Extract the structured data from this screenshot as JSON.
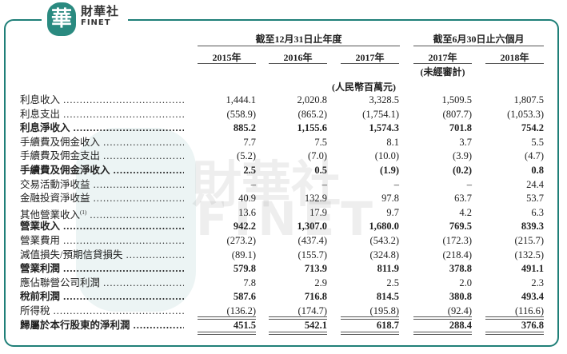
{
  "brand": {
    "logo_char": "華",
    "name_cn": "財華社",
    "name_en": "FINET"
  },
  "watermark": {
    "cn": "財華社",
    "en": "FINET"
  },
  "header": {
    "group_annual": "截至12月31日止年度",
    "group_interim": "截至6月30日止六個月",
    "years": [
      "2015年",
      "2016年",
      "2017年",
      "2017年",
      "2018年"
    ],
    "unaudited": "(未經審計)",
    "unit": "(人民幣百萬元)"
  },
  "rows": [
    {
      "label": "利息收入",
      "bold": false,
      "values": [
        "1,444.1",
        "2,020.8",
        "3,328.5",
        "1,509.5",
        "1,807.5"
      ]
    },
    {
      "label": "利息支出",
      "bold": false,
      "values": [
        "(558.9)",
        "(865.2)",
        "(1,754.1)",
        "(807.7)",
        "(1,053.3)"
      ]
    },
    {
      "label": "利息淨收入",
      "bold": true,
      "values": [
        "885.2",
        "1,155.6",
        "1,574.3",
        "701.8",
        "754.2"
      ]
    },
    {
      "label": "手續費及佣金收入",
      "bold": false,
      "values": [
        "7.7",
        "7.5",
        "8.1",
        "3.7",
        "5.5"
      ]
    },
    {
      "label": "手續費及佣金支出",
      "bold": false,
      "values": [
        "(5.2)",
        "(7.0)",
        "(10.0)",
        "(3.9)",
        "(4.7)"
      ]
    },
    {
      "label": "手續費及佣金淨收入",
      "bold": true,
      "values": [
        "2.5",
        "0.5",
        "(1.9)",
        "(0.2)",
        "0.8"
      ]
    },
    {
      "label": "交易活動淨收益",
      "bold": false,
      "values": [
        "–",
        "–",
        "–",
        "–",
        "24.4"
      ]
    },
    {
      "label": "金融投資淨收益",
      "bold": false,
      "values": [
        "40.9",
        "132.9",
        "97.8",
        "63.7",
        "53.7"
      ]
    },
    {
      "label": "其他營業收入",
      "note": "(1)",
      "bold": false,
      "values": [
        "13.6",
        "17.9",
        "9.7",
        "4.2",
        "6.3"
      ]
    },
    {
      "label": "營業收入",
      "bold": true,
      "values": [
        "942.2",
        "1,307.0",
        "1,680.0",
        "769.5",
        "839.3"
      ]
    },
    {
      "label": "營業費用",
      "bold": false,
      "values": [
        "(273.2)",
        "(437.4)",
        "(543.2)",
        "(172.3)",
        "(215.7)"
      ]
    },
    {
      "label": "減值損失/預期信貸損失",
      "bold": false,
      "values": [
        "(89.1)",
        "(155.7)",
        "(324.8)",
        "(218.4)",
        "(132.5)"
      ]
    },
    {
      "label": "營業利潤",
      "bold": true,
      "values": [
        "579.8",
        "713.9",
        "811.9",
        "378.8",
        "491.1"
      ]
    },
    {
      "label": "應佔聯營公司利潤",
      "bold": false,
      "values": [
        "7.8",
        "2.9",
        "2.5",
        "2.0",
        "2.3"
      ]
    },
    {
      "label": "稅前利潤",
      "bold": true,
      "values": [
        "587.6",
        "716.8",
        "814.5",
        "380.8",
        "493.4"
      ]
    },
    {
      "label": "所得稅",
      "bold": false,
      "values": [
        "(136.2)",
        "(174.7)",
        "(195.8)",
        "(92.4)",
        "(116.6)"
      ]
    },
    {
      "label": "歸屬於本行股東的淨利潤",
      "bold": true,
      "values": [
        "451.5",
        "542.1",
        "618.7",
        "288.4",
        "376.8"
      ]
    }
  ]
}
